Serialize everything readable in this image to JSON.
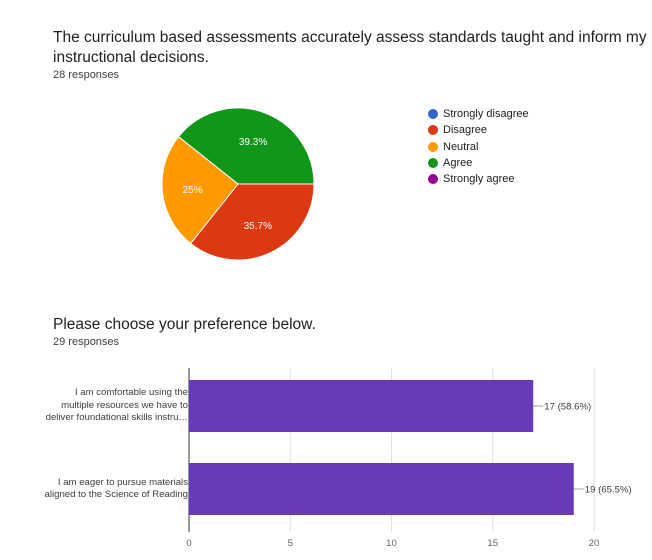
{
  "pie_question": {
    "title_line1": "The curriculum based assessments accurately assess standards taught and inform my",
    "title_line2": "instructional decisions.",
    "responses": "28 responses"
  },
  "bar_question": {
    "title": "Please choose your preference below.",
    "responses": "29 responses"
  },
  "chart_data": [
    {
      "type": "pie",
      "labels": [
        "Strongly disagree",
        "Disagree",
        "Neutral",
        "Agree",
        "Strongly agree"
      ],
      "values": [
        0,
        35.7,
        25,
        39.3,
        0
      ],
      "value_labels": [
        "",
        "35.7%",
        "25%",
        "39.3%",
        ""
      ],
      "colors": [
        "#3366cc",
        "#dc3912",
        "#ff9900",
        "#109618",
        "#990099"
      ],
      "legend": "right"
    },
    {
      "type": "bar",
      "orientation": "horizontal",
      "categories": [
        [
          "I am comfortable using the",
          "multiple resources we have to",
          "deliver foundational skills instru…"
        ],
        [
          "I am eager to pursue materials",
          "aligned to the Science of Reading"
        ]
      ],
      "values": [
        17,
        19
      ],
      "data_labels": [
        "17 (58.6%)",
        "19 (65.5%)"
      ],
      "xlim": [
        0,
        20
      ],
      "xticks": [
        0,
        5,
        10,
        15,
        20
      ],
      "color": "#673ab7",
      "grid": true
    }
  ]
}
